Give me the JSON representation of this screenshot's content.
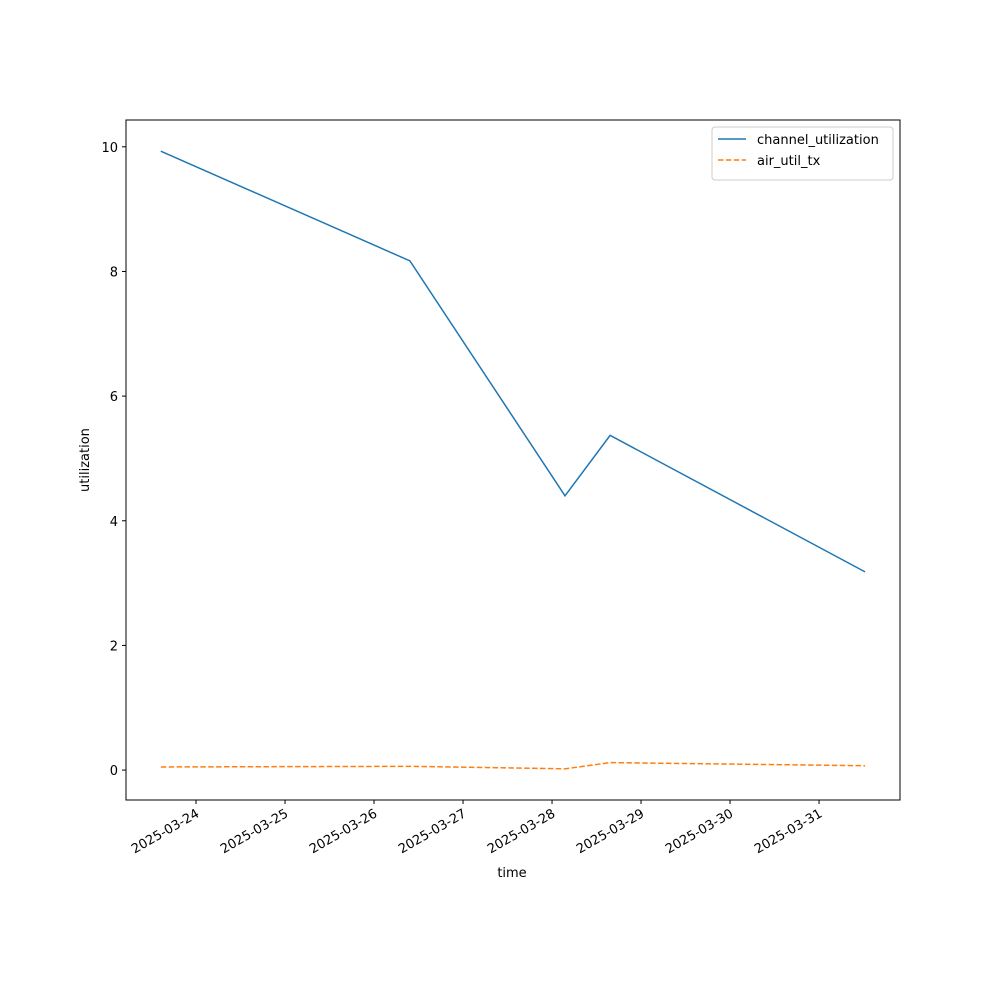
{
  "chart_data": {
    "type": "line",
    "x_label": "time",
    "y_label": "utilization",
    "x": [
      "2025-03-23T14:30",
      "2025-03-26T09:40",
      "2025-03-28T03:30",
      "2025-03-28T15:40",
      "2025-03-31T12:25"
    ],
    "series": [
      {
        "name": "channel_utilization",
        "color": "#1f77b4",
        "dash": "solid",
        "values": [
          9.93,
          8.17,
          4.4,
          5.37,
          3.18
        ]
      },
      {
        "name": "air_util_tx",
        "color": "#ff7f0e",
        "dash": "dashed",
        "values": [
          0.05,
          0.06,
          0.02,
          0.12,
          0.07
        ]
      }
    ],
    "xlim": [
      "2025-03-23T05:07",
      "2025-03-31T21:50"
    ],
    "xticks": [
      "2025-03-24",
      "2025-03-25",
      "2025-03-26",
      "2025-03-27",
      "2025-03-28",
      "2025-03-29",
      "2025-03-30",
      "2025-03-31"
    ],
    "ylim": [
      -0.48,
      10.43
    ],
    "yticks": [
      0,
      2,
      4,
      6,
      8,
      10
    ],
    "grid": false,
    "legend": "upper right"
  }
}
